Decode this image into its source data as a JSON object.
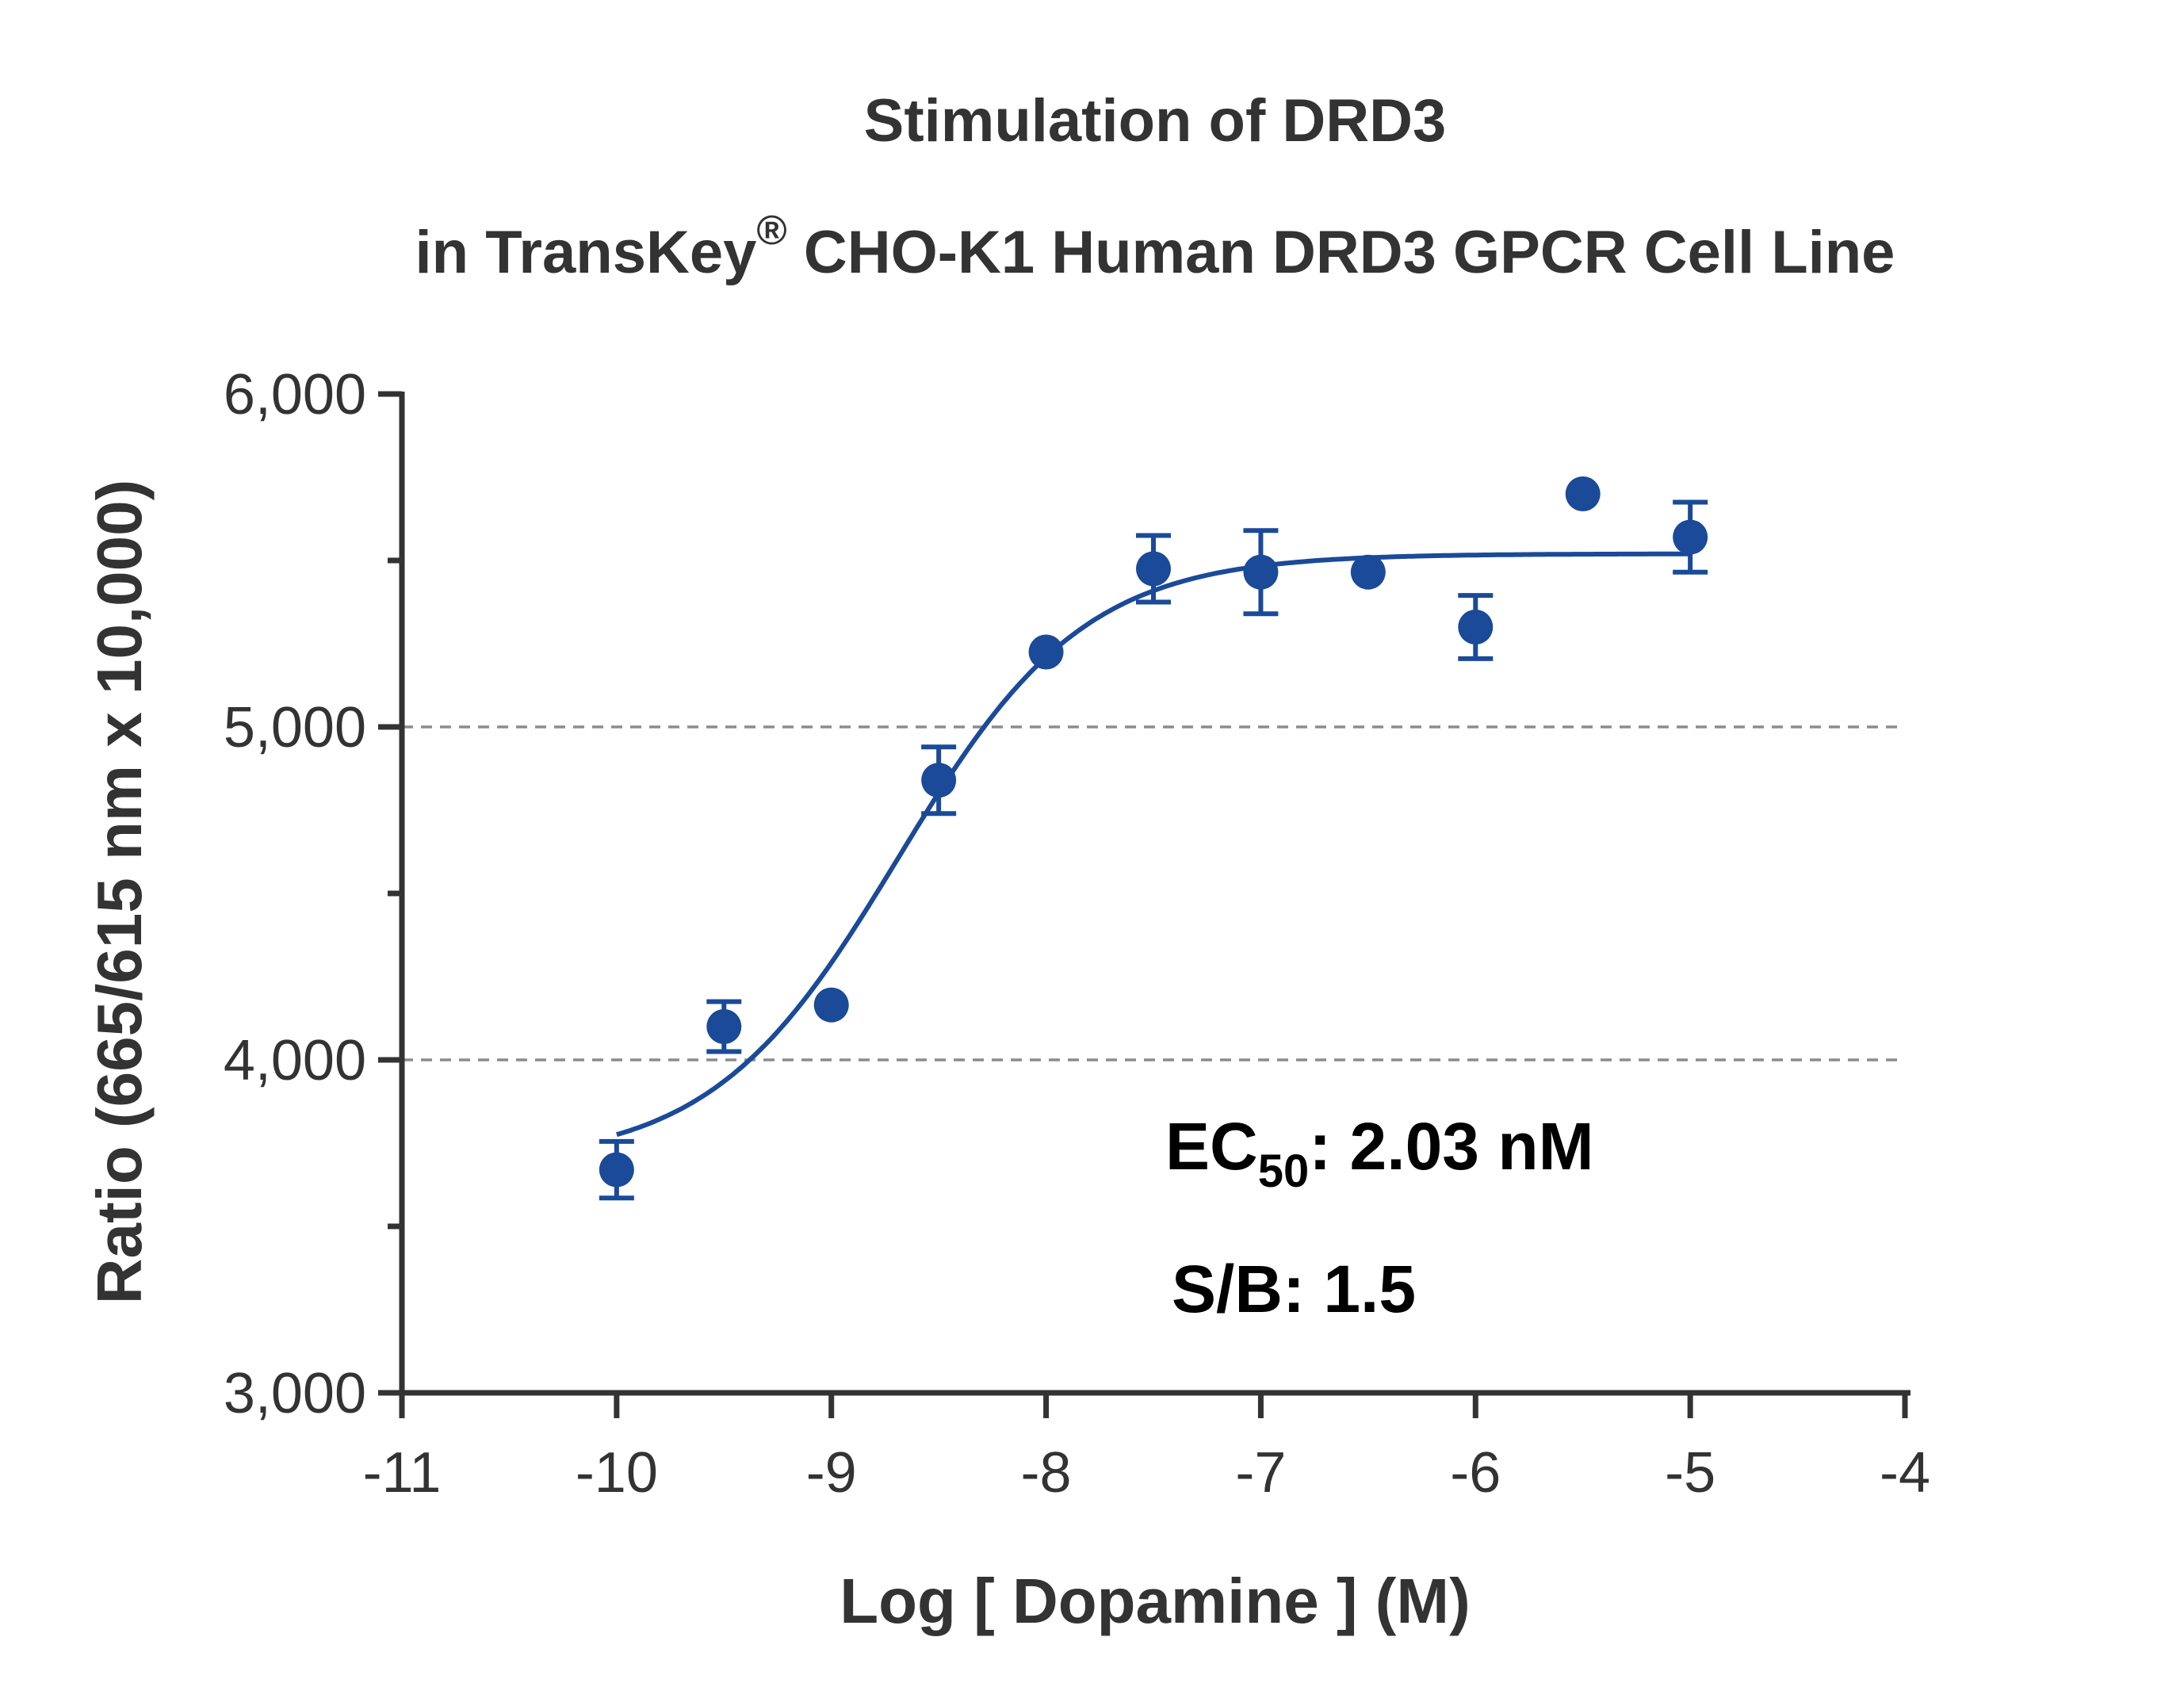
{
  "chart_data": {
    "type": "scatter",
    "title_line1": "Stimulation of  DRD3",
    "title_line2_pre": "in TransKey",
    "title_line2_sup": "®",
    "title_line2_post": " CHO-K1 Human DRD3 GPCR Cell Line",
    "xlabel": "Log [ Dopamine ]  (M)",
    "ylabel": "Ratio (665/615 nm x 10,000)",
    "xlim": [
      -11,
      -4
    ],
    "ylim": [
      3000,
      6000
    ],
    "x_ticks": [
      -11,
      -10,
      -9,
      -8,
      -7,
      -6,
      -5,
      -4
    ],
    "x_tick_labels": [
      "-11",
      "-10",
      "-9",
      "-8",
      "-7",
      "-6",
      "-5",
      "-4"
    ],
    "y_ticks": [
      3000,
      4000,
      5000,
      6000
    ],
    "y_tick_labels": [
      "3,000",
      "4,000",
      "5,000",
      "6,000"
    ],
    "y_minor_ticks": [
      3500,
      4500,
      5500
    ],
    "gridlines_y": [
      4000,
      5000
    ],
    "grid": "dashed horizontal at 4,000 and 5,000",
    "series": [
      {
        "points": [
          {
            "x": -10.0,
            "y": 3670,
            "err": 85
          },
          {
            "x": -9.5,
            "y": 4100,
            "err": 75
          },
          {
            "x": -9.0,
            "y": 4165,
            "err": 0
          },
          {
            "x": -8.5,
            "y": 4840,
            "err": 100
          },
          {
            "x": -8.0,
            "y": 5225,
            "err": 0
          },
          {
            "x": -7.5,
            "y": 5475,
            "err": 100
          },
          {
            "x": -7.0,
            "y": 5465,
            "err": 125
          },
          {
            "x": -6.5,
            "y": 5465,
            "err": 0
          },
          {
            "x": -6.0,
            "y": 5300,
            "err": 95
          },
          {
            "x": -5.5,
            "y": 5700,
            "err": 0
          },
          {
            "x": -5.0,
            "y": 5570,
            "err": 105
          }
        ]
      }
    ],
    "fit": {
      "model": "four-parameter logistic",
      "bottom": 3690,
      "top": 5520,
      "log_ec50": -8.69,
      "hill": 1.0,
      "x_range": [
        -10,
        -5
      ]
    },
    "annotations": {
      "ec50_prefix": "EC",
      "ec50_sub": "50",
      "ec50_suffix": ": 2.03 nM",
      "sb": "S/B: 1.5"
    },
    "colors": {
      "series": "#1a4a98",
      "axis": "#333333",
      "grid": "#8c8c8c",
      "text": "#333333"
    }
  }
}
